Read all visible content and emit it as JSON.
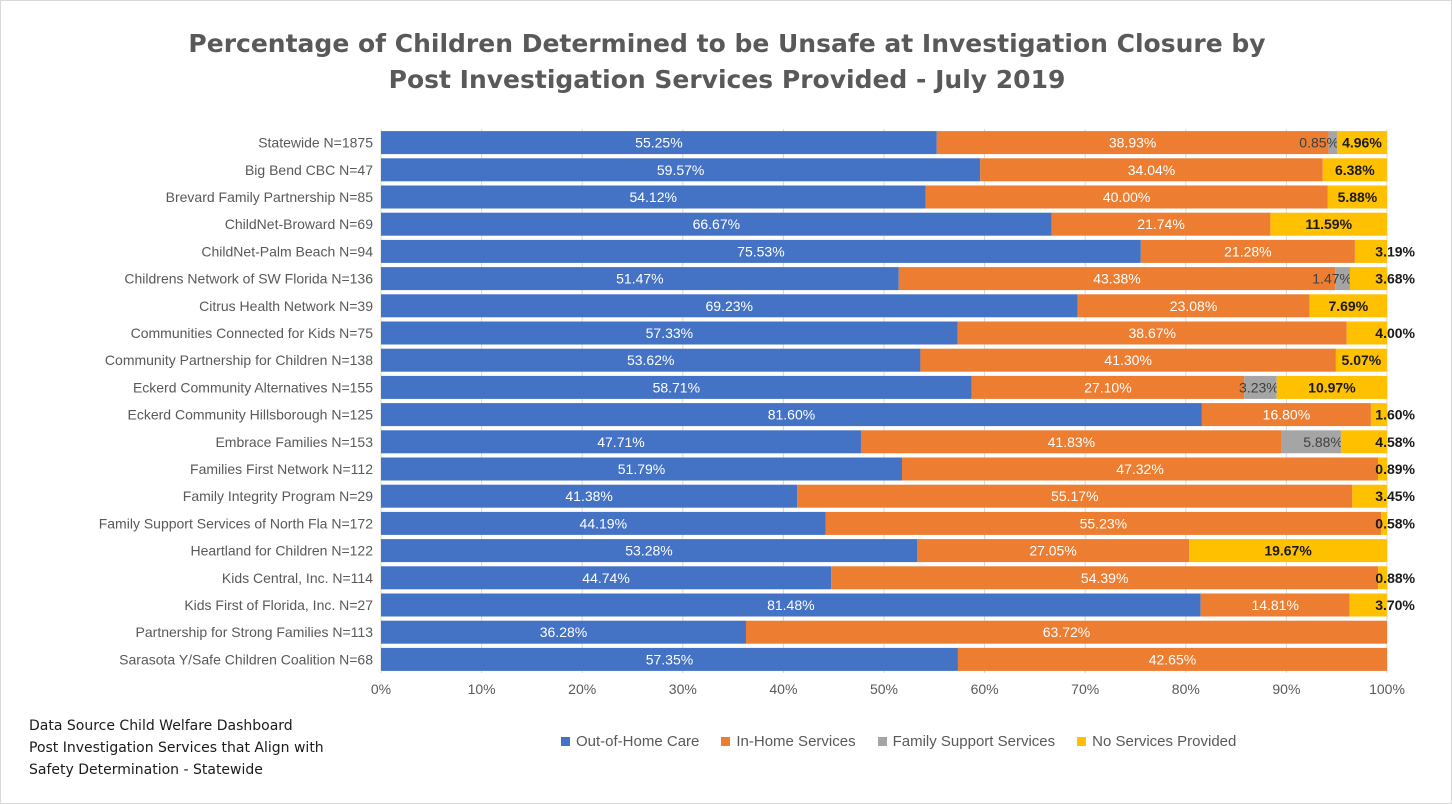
{
  "chart_data": {
    "type": "bar",
    "orientation": "horizontal",
    "stacked": true,
    "title": "Percentage of Children Determined to be Unsafe at Investigation Closure by Post Investigation Services Provided - July 2019",
    "title_lines": [
      "Percentage of Children Determined to be Unsafe at Investigation Closure by",
      "Post Investigation Services Provided - July 2019"
    ],
    "categories": [
      "Statewide N=1875",
      "Big Bend CBC N=47",
      "Brevard Family Partnership N=85",
      "ChildNet-Broward N=69",
      "ChildNet-Palm Beach N=94",
      "Childrens Network of SW Florida N=136",
      "Citrus Health Network N=39",
      "Communities Connected for Kids N=75",
      "Community Partnership for Children N=138",
      "Eckerd Community Alternatives N=155",
      "Eckerd Community Hillsborough N=125",
      "Embrace Families N=153",
      "Families First Network N=112",
      "Family Integrity Program N=29",
      "Family Support Services of North Fla N=172",
      "Heartland for Children N=122",
      "Kids Central, Inc. N=114",
      "Kids First of Florida, Inc. N=27",
      "Partnership for Strong Families N=113",
      "Sarasota Y/Safe Children Coalition N=68"
    ],
    "series": [
      {
        "name": "Out-of-Home Care",
        "color": "#4472c4",
        "values": [
          55.25,
          59.57,
          54.12,
          66.67,
          75.53,
          51.47,
          69.23,
          57.33,
          53.62,
          58.71,
          81.6,
          47.71,
          51.79,
          41.38,
          44.19,
          53.28,
          44.74,
          81.48,
          36.28,
          57.35
        ],
        "labels": [
          "55.25%",
          "59.57%",
          "54.12%",
          "66.67%",
          "75.53%",
          "51.47%",
          "69.23%",
          "57.33%",
          "53.62%",
          "58.71%",
          "81.60%",
          "47.71%",
          "51.79%",
          "41.38%",
          "44.19%",
          "53.28%",
          "44.74%",
          "81.48%",
          "36.28%",
          "57.35%"
        ]
      },
      {
        "name": "In-Home Services",
        "color": "#ed7d31",
        "values": [
          38.93,
          34.04,
          40.0,
          21.74,
          21.28,
          43.38,
          23.08,
          38.67,
          41.3,
          27.1,
          16.8,
          41.83,
          47.32,
          55.17,
          55.23,
          27.05,
          54.39,
          14.81,
          63.72,
          42.65
        ],
        "labels": [
          "38.93%",
          "34.04%",
          "40.00%",
          "21.74%",
          "21.28%",
          "43.38%",
          "23.08%",
          "38.67%",
          "41.30%",
          "27.10%",
          "16.80%",
          "41.83%",
          "47.32%",
          "55.17%",
          "55.23%",
          "27.05%",
          "54.39%",
          "14.81%",
          "63.72%",
          "42.65%"
        ]
      },
      {
        "name": "Family Support Services",
        "color": "#a5a5a5",
        "values": [
          0.85,
          0,
          0,
          0,
          0,
          1.47,
          0,
          0,
          0,
          3.23,
          0,
          5.88,
          0,
          0,
          0,
          0,
          0,
          0,
          0,
          0
        ],
        "labels": [
          "0.85%",
          "",
          "",
          "",
          "",
          "1.47%",
          "",
          "",
          "",
          "3.23%",
          "",
          "5.88%",
          "",
          "",
          "",
          "",
          "",
          "",
          "",
          ""
        ]
      },
      {
        "name": "No Services Provided",
        "color": "#ffc000",
        "values": [
          4.96,
          6.38,
          5.88,
          11.59,
          3.19,
          3.68,
          7.69,
          4.0,
          5.07,
          10.97,
          1.6,
          4.58,
          0.89,
          3.45,
          0.58,
          19.67,
          0.88,
          3.7,
          0,
          0
        ],
        "labels": [
          "4.96%",
          "6.38%",
          "5.88%",
          "11.59%",
          "3.19%",
          "3.68%",
          "7.69%",
          "4.00%",
          "5.07%",
          "10.97%",
          "1.60%",
          "4.58%",
          "0.89%",
          "3.45%",
          "0.58%",
          "19.67%",
          "0.88%",
          "3.70%",
          "",
          ""
        ]
      }
    ],
    "xlim": [
      0,
      100
    ],
    "x_ticks": [
      "0%",
      "10%",
      "20%",
      "30%",
      "40%",
      "50%",
      "60%",
      "70%",
      "80%",
      "90%",
      "100%"
    ],
    "grid": true,
    "legend_position": "bottom"
  },
  "source_note": [
    "Data Source Child Welfare Dashboard",
    "Post Investigation Services that Align with",
    "Safety Determination - Statewide"
  ]
}
